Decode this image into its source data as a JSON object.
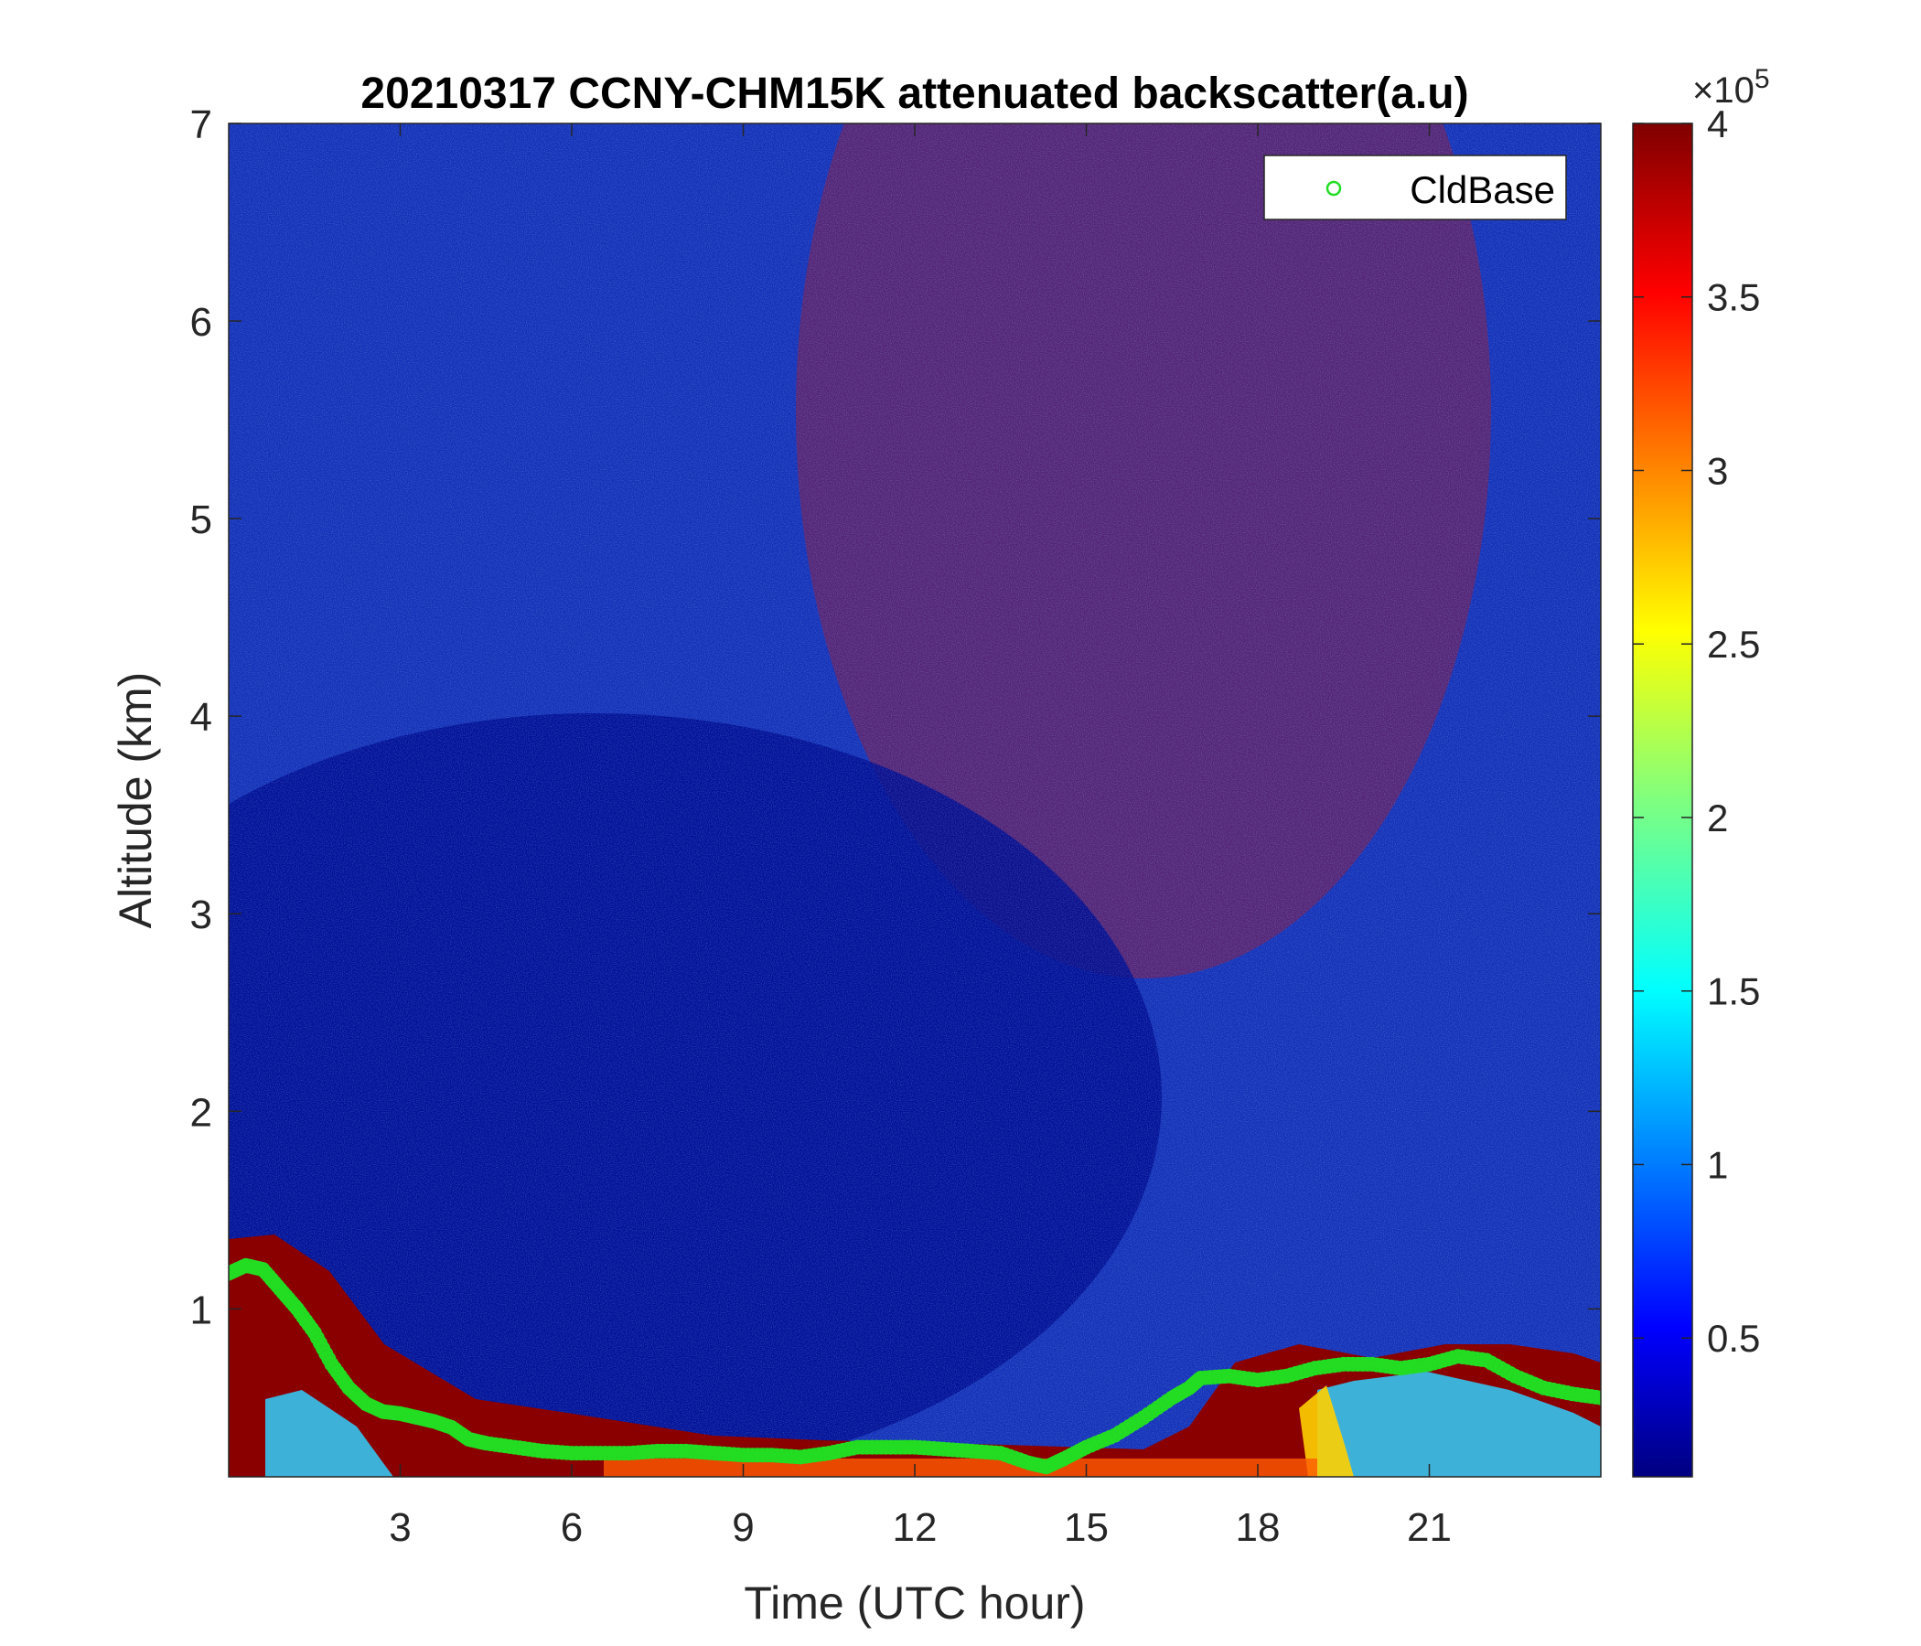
{
  "chart_data": {
    "type": "heatmap",
    "title": "20210317 CCNY-CHM15K attenuated backscatter(a.u)",
    "xlabel": "Time (UTC hour)",
    "ylabel": "Altitude (km)",
    "xlim": [
      0,
      24
    ],
    "ylim": [
      0.15,
      7
    ],
    "x_ticks": [
      3,
      6,
      9,
      12,
      15,
      18,
      21
    ],
    "y_ticks": [
      1,
      2,
      3,
      4,
      5,
      6,
      7
    ],
    "colorbar": {
      "colormap": "jet",
      "min": 10000,
      "max": 400000,
      "ticks": [
        0.5,
        1,
        1.5,
        2,
        2.5,
        3,
        3.5,
        4
      ],
      "exponent_label": "×10",
      "exponent": "5"
    },
    "legend": {
      "position": "top-right",
      "entries": [
        {
          "label": "CldBase",
          "marker": "circle",
          "color": "#22dd22"
        }
      ]
    },
    "series": [
      {
        "name": "CldBase",
        "type": "scatter",
        "x": [
          0.0,
          0.3,
          0.6,
          0.9,
          1.2,
          1.5,
          1.8,
          2.1,
          2.4,
          2.7,
          3.0,
          3.3,
          3.6,
          3.9,
          4.2,
          4.5,
          5.0,
          5.5,
          6.0,
          6.5,
          7.0,
          7.5,
          8.0,
          8.5,
          9.0,
          9.5,
          10.0,
          10.5,
          11.0,
          11.5,
          12.0,
          12.5,
          13.0,
          13.5,
          14.0,
          14.3,
          14.6,
          15.0,
          15.5,
          16.0,
          16.5,
          16.8,
          17.0,
          17.5,
          18.0,
          18.5,
          19.0,
          19.5,
          20.0,
          20.5,
          21.0,
          21.5,
          22.0,
          22.5,
          23.0,
          23.5,
          24.0
        ],
        "y": [
          1.18,
          1.22,
          1.2,
          1.1,
          1.0,
          0.88,
          0.72,
          0.6,
          0.52,
          0.48,
          0.47,
          0.45,
          0.43,
          0.4,
          0.34,
          0.32,
          0.3,
          0.28,
          0.27,
          0.27,
          0.27,
          0.28,
          0.28,
          0.27,
          0.26,
          0.26,
          0.25,
          0.27,
          0.3,
          0.3,
          0.3,
          0.29,
          0.28,
          0.27,
          0.22,
          0.2,
          0.24,
          0.3,
          0.36,
          0.45,
          0.55,
          0.6,
          0.65,
          0.66,
          0.64,
          0.66,
          0.7,
          0.72,
          0.72,
          0.7,
          0.72,
          0.76,
          0.74,
          0.66,
          0.6,
          0.57,
          0.55
        ]
      }
    ]
  }
}
